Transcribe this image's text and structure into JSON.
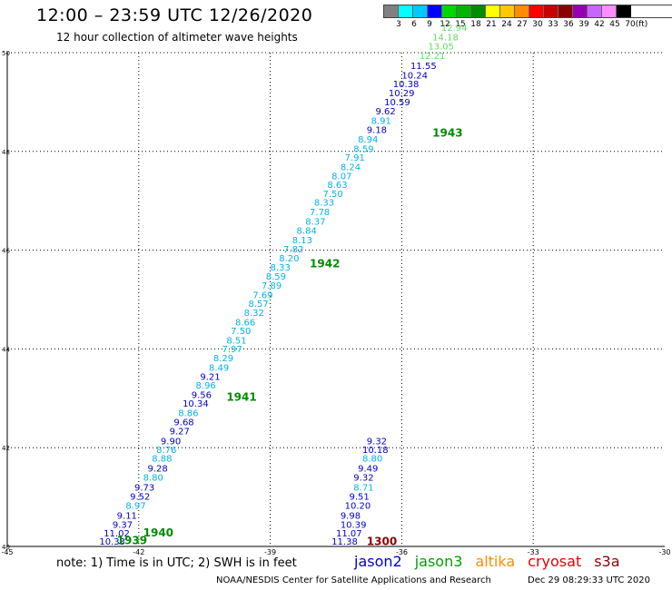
{
  "header": {
    "title": "12:00 – 23:59 UTC 12/26/2020",
    "subtitle": "12 hour collection of altimeter wave heights"
  },
  "legend": {
    "colors": [
      "#808080",
      "#00ffff",
      "#00c8ff",
      "#0000ff",
      "#00d800",
      "#00b400",
      "#008c00",
      "#ffff00",
      "#ffc800",
      "#ff8c00",
      "#ff0000",
      "#c80000",
      "#8c0000",
      "#9600b4",
      "#c864ff",
      "#ff8cff",
      "#000000"
    ],
    "labels": [
      "3",
      "6",
      "9",
      "12",
      "15",
      "18",
      "21",
      "24",
      "27",
      "30",
      "33",
      "36",
      "39",
      "42",
      "45",
      "70",
      "(ft)"
    ]
  },
  "map": {
    "lon_range": [
      -45,
      -30
    ],
    "lat_range": [
      40,
      50
    ],
    "x_ticks": [
      "-45",
      "-42",
      "-39",
      "-36",
      "-33",
      "-30"
    ],
    "y_ticks": [
      "50",
      "48",
      "46",
      "44",
      "42",
      "40"
    ],
    "track_labels": [
      {
        "text": "1940",
        "lon": -41.9,
        "lat": 40.2,
        "color": "#008c00"
      },
      {
        "text": "1939",
        "lon": -42.5,
        "lat": 40.05,
        "color": "#008c00"
      },
      {
        "text": "1941",
        "lon": -40.0,
        "lat": 42.95,
        "color": "#008c00"
      },
      {
        "text": "1942",
        "lon": -38.1,
        "lat": 45.65,
        "color": "#008c00"
      },
      {
        "text": "1943",
        "lon": -35.3,
        "lat": 48.3,
        "color": "#008c00"
      },
      {
        "text": "1300",
        "lon": -36.8,
        "lat": 40.03,
        "color": "#8c0000"
      }
    ],
    "points": [
      {
        "v": "10.33",
        "lon": -42.9,
        "lat": 40.04,
        "c": "#0000c8"
      },
      {
        "v": "11.02",
        "lon": -42.8,
        "lat": 40.2,
        "c": "#0000c8"
      },
      {
        "v": "9.37",
        "lon": -42.6,
        "lat": 40.38,
        "c": "#0000c8"
      },
      {
        "v": "9.11",
        "lon": -42.5,
        "lat": 40.56,
        "c": "#0000c8"
      },
      {
        "v": "8.97",
        "lon": -42.3,
        "lat": 40.76,
        "c": "#00b4e6"
      },
      {
        "v": "9.52",
        "lon": -42.2,
        "lat": 40.95,
        "c": "#0000c8"
      },
      {
        "v": "9.73",
        "lon": -42.1,
        "lat": 41.13,
        "c": "#0000c8"
      },
      {
        "v": "8.80",
        "lon": -41.9,
        "lat": 41.33,
        "c": "#00b4e6"
      },
      {
        "v": "9.28",
        "lon": -41.8,
        "lat": 41.52,
        "c": "#0000c8"
      },
      {
        "v": "8.88",
        "lon": -41.7,
        "lat": 41.72,
        "c": "#00b4e6"
      },
      {
        "v": "8.76",
        "lon": -41.6,
        "lat": 41.89,
        "c": "#00b4e6"
      },
      {
        "v": "9.90",
        "lon": -41.5,
        "lat": 42.07,
        "c": "#0000c8"
      },
      {
        "v": "9.27",
        "lon": -41.3,
        "lat": 42.27,
        "c": "#0000c8"
      },
      {
        "v": "9.68",
        "lon": -41.2,
        "lat": 42.45,
        "c": "#0000c8"
      },
      {
        "v": "8.86",
        "lon": -41.1,
        "lat": 42.64,
        "c": "#00b4e6"
      },
      {
        "v": "10.34",
        "lon": -41.0,
        "lat": 42.83,
        "c": "#0000c8"
      },
      {
        "v": "9.56",
        "lon": -40.8,
        "lat": 43.01,
        "c": "#0000c8"
      },
      {
        "v": "8.96",
        "lon": -40.7,
        "lat": 43.2,
        "c": "#00b4e6"
      },
      {
        "v": "9.21",
        "lon": -40.6,
        "lat": 43.37,
        "c": "#0000c8"
      },
      {
        "v": "8.49",
        "lon": -40.4,
        "lat": 43.56,
        "c": "#00b4e6"
      },
      {
        "v": "8.29",
        "lon": -40.3,
        "lat": 43.75,
        "c": "#00b4e6"
      },
      {
        "v": "7.97",
        "lon": -40.1,
        "lat": 43.93,
        "c": "#00b4e6"
      },
      {
        "v": "8.51",
        "lon": -40.0,
        "lat": 44.11,
        "c": "#00b4e6"
      },
      {
        "v": "7.50",
        "lon": -39.9,
        "lat": 44.3,
        "c": "#00b4e6"
      },
      {
        "v": "8.66",
        "lon": -39.8,
        "lat": 44.48,
        "c": "#00b4e6"
      },
      {
        "v": "8.32",
        "lon": -39.6,
        "lat": 44.67,
        "c": "#00b4e6"
      },
      {
        "v": "8.57",
        "lon": -39.5,
        "lat": 44.85,
        "c": "#00b4e6"
      },
      {
        "v": "7.69",
        "lon": -39.4,
        "lat": 45.03,
        "c": "#00b4e6"
      },
      {
        "v": "7.89",
        "lon": -39.2,
        "lat": 45.22,
        "c": "#00b4e6"
      },
      {
        "v": "8.59",
        "lon": -39.1,
        "lat": 45.4,
        "c": "#00b4e6"
      },
      {
        "v": "8.33",
        "lon": -39.0,
        "lat": 45.59,
        "c": "#00b4e6"
      },
      {
        "v": "8.20",
        "lon": -38.8,
        "lat": 45.77,
        "c": "#00b4e6"
      },
      {
        "v": "7.82",
        "lon": -38.7,
        "lat": 45.96,
        "c": "#00b4e6"
      },
      {
        "v": "8.13",
        "lon": -38.5,
        "lat": 46.14,
        "c": "#00b4e6"
      },
      {
        "v": "8.84",
        "lon": -38.4,
        "lat": 46.33,
        "c": "#00b4e6"
      },
      {
        "v": "8.37",
        "lon": -38.2,
        "lat": 46.52,
        "c": "#00b4e6"
      },
      {
        "v": "7.78",
        "lon": -38.1,
        "lat": 46.71,
        "c": "#00b4e6"
      },
      {
        "v": "8.33",
        "lon": -38.0,
        "lat": 46.9,
        "c": "#00b4e6"
      },
      {
        "v": "7.50",
        "lon": -37.8,
        "lat": 47.08,
        "c": "#00b4e6"
      },
      {
        "v": "8.63",
        "lon": -37.7,
        "lat": 47.26,
        "c": "#00b4e6"
      },
      {
        "v": "8.07",
        "lon": -37.6,
        "lat": 47.44,
        "c": "#00b4e6"
      },
      {
        "v": "8.24",
        "lon": -37.4,
        "lat": 47.62,
        "c": "#00b4e6"
      },
      {
        "v": "7.91",
        "lon": -37.3,
        "lat": 47.81,
        "c": "#00b4e6"
      },
      {
        "v": "8.59",
        "lon": -37.1,
        "lat": 47.99,
        "c": "#00b4e6"
      },
      {
        "v": "8.94",
        "lon": -37.0,
        "lat": 48.18,
        "c": "#00b4e6"
      },
      {
        "v": "9.18",
        "lon": -36.8,
        "lat": 48.37,
        "c": "#0000c8"
      },
      {
        "v": "8.91",
        "lon": -36.7,
        "lat": 48.56,
        "c": "#00b4e6"
      },
      {
        "v": "9.62",
        "lon": -36.6,
        "lat": 48.75,
        "c": "#0000c8"
      },
      {
        "v": "10.59",
        "lon": -36.4,
        "lat": 48.93,
        "c": "#0000c8"
      },
      {
        "v": "10.29",
        "lon": -36.3,
        "lat": 49.12,
        "c": "#0000c8"
      },
      {
        "v": "10.38",
        "lon": -36.2,
        "lat": 49.3,
        "c": "#0000c8"
      },
      {
        "v": "10.24",
        "lon": -36.0,
        "lat": 49.48,
        "c": "#0000c8"
      },
      {
        "v": "11.55",
        "lon": -35.8,
        "lat": 49.67,
        "c": "#0000c8"
      },
      {
        "v": "12.21",
        "lon": -35.6,
        "lat": 49.87,
        "c": "#64dc64"
      },
      {
        "v": "13.05",
        "lon": -35.4,
        "lat": 50.06,
        "c": "#64dc64"
      },
      {
        "v": "14.18",
        "lon": -35.3,
        "lat": 50.25,
        "c": "#64dc64"
      },
      {
        "v": "12.94",
        "lon": -35.1,
        "lat": 50.44,
        "c": "#64dc64"
      },
      {
        "v": "11.38",
        "lon": -37.6,
        "lat": 40.04,
        "c": "#0000c8"
      },
      {
        "v": "11.07",
        "lon": -37.5,
        "lat": 40.2,
        "c": "#0000c8"
      },
      {
        "v": "10.39",
        "lon": -37.4,
        "lat": 40.38,
        "c": "#0000c8"
      },
      {
        "v": "9.98",
        "lon": -37.4,
        "lat": 40.56,
        "c": "#0000c8"
      },
      {
        "v": "10.20",
        "lon": -37.3,
        "lat": 40.76,
        "c": "#0000c8"
      },
      {
        "v": "9.51",
        "lon": -37.2,
        "lat": 40.95,
        "c": "#0000c8"
      },
      {
        "v": "8.71",
        "lon": -37.1,
        "lat": 41.13,
        "c": "#00b4e6"
      },
      {
        "v": "9.32",
        "lon": -37.1,
        "lat": 41.33,
        "c": "#0000c8"
      },
      {
        "v": "9.49",
        "lon": -37.0,
        "lat": 41.52,
        "c": "#0000c8"
      },
      {
        "v": "8.80",
        "lon": -36.9,
        "lat": 41.72,
        "c": "#00b4e6"
      },
      {
        "v": "10.18",
        "lon": -36.9,
        "lat": 41.89,
        "c": "#0000c8"
      },
      {
        "v": "9.32",
        "lon": -36.8,
        "lat": 42.07,
        "c": "#0000c8"
      }
    ]
  },
  "footer": {
    "note": "note: 1) Time is in UTC; 2) SWH is in feet",
    "satellites": [
      {
        "name": "jason2",
        "color": "#0000c8"
      },
      {
        "name": "jason3",
        "color": "#00a000"
      },
      {
        "name": "altika",
        "color": "#ff8c00"
      },
      {
        "name": "cryosat",
        "color": "#e60000"
      },
      {
        "name": "s3a",
        "color": "#8c0000"
      }
    ],
    "credit": "NOAA/NESDIS Center for Satellite Applications and Research",
    "timestamp": "Dec 29 08:29:33 UTC 2020"
  }
}
